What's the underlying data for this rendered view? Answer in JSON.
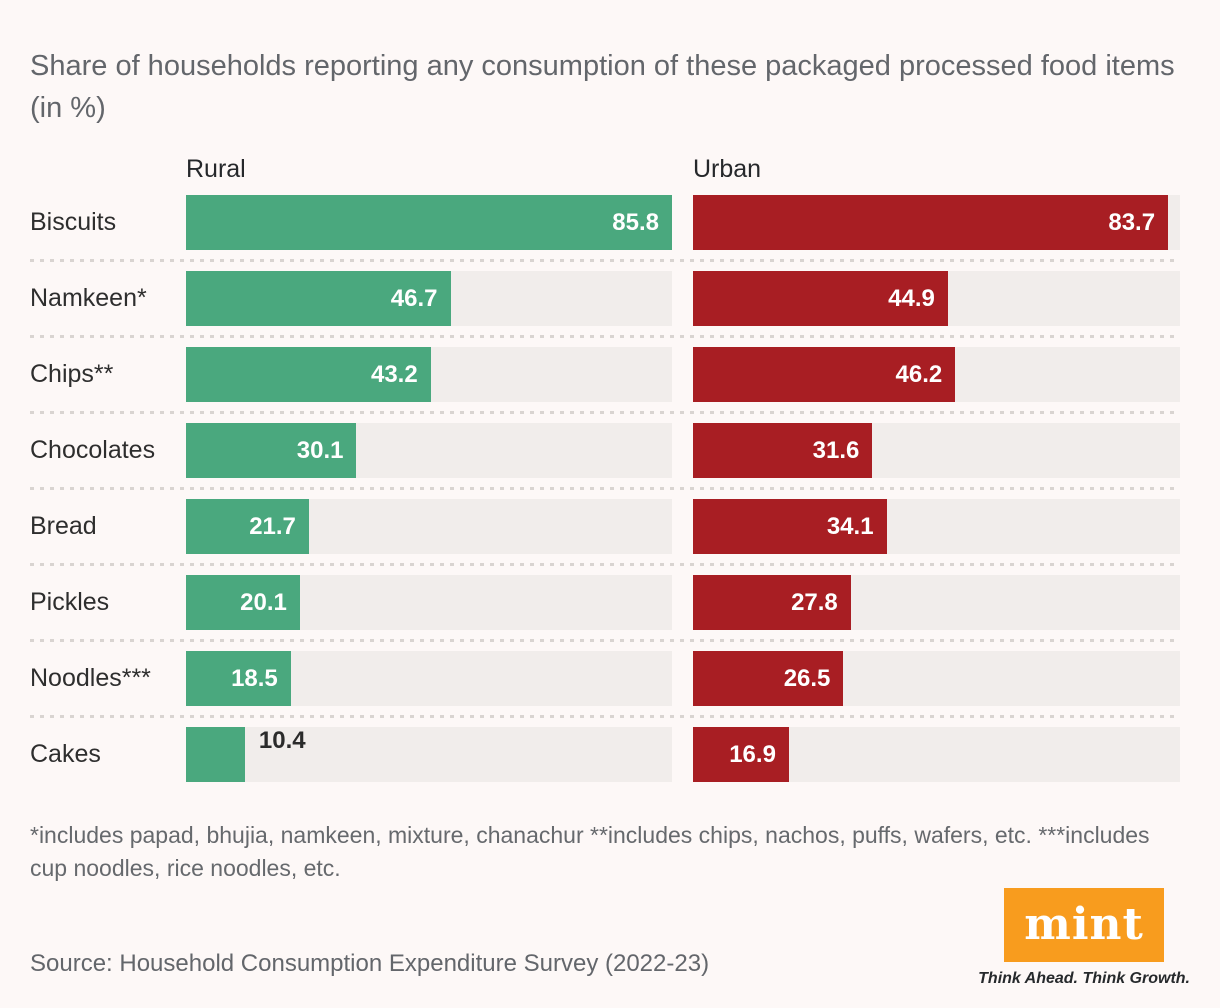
{
  "title": "Share of households reporting any consumption of these packaged processed food items (in %)",
  "chart_data": {
    "type": "bar",
    "orientation": "horizontal",
    "title": "Share of households reporting any consumption of these packaged processed food items (in %)",
    "categories": [
      "Biscuits",
      "Namkeen*",
      "Chips**",
      "Chocolates",
      "Bread",
      "Pickles",
      "Noodles***",
      "Cakes"
    ],
    "series": [
      {
        "name": "Rural",
        "color": "#4aa87e",
        "values": [
          85.8,
          46.7,
          43.2,
          30.1,
          21.7,
          20.1,
          18.5,
          10.4
        ]
      },
      {
        "name": "Urban",
        "color": "#a81e23",
        "values": [
          83.7,
          44.9,
          46.2,
          31.6,
          34.1,
          27.8,
          26.5,
          16.9
        ]
      }
    ],
    "value_axis_max": 85.8,
    "unit": "%",
    "legend_position": "column headers above each bar group",
    "grid": "dotted horizontal separators between rows"
  },
  "footnote": "*includes papad, bhujia, namkeen, mixture, chanachur **includes chips, nachos, puffs, wafers, etc. ***includes cup noodles, rice noodles, etc.",
  "source": "Source: Household Consumption Expenditure Survey (2022-23)",
  "branding": {
    "logo_text": "mint",
    "tagline": "Think Ahead. Think Growth."
  },
  "colors": {
    "background": "#fdf8f7",
    "track": "#f1edeb",
    "rural_bar": "#4aa87e",
    "urban_bar": "#a81e23",
    "value_label_inside": "#ffffff",
    "value_label_outside": "#2b2b2b",
    "logo_background": "#f89c1e"
  }
}
